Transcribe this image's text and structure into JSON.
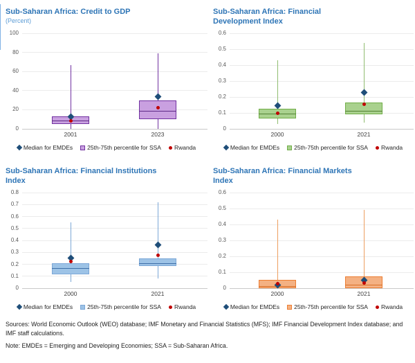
{
  "figure": {
    "legend": {
      "emde": "Median for EMDEs",
      "ssa": "25th-75th percentile for SSA",
      "rwanda": "Rwanda"
    },
    "notes": {
      "sources": "Sources: World Economic Outlook (WEO) database; IMF Monetary and Financial Statistics (MFS); IMF Financial Development Index database; and IMF staff calculations.",
      "note": "Note: EMDEs = Emerging and Developing Economies; SSA = Sub-Saharan Africa."
    },
    "colors": {
      "title": "#2E75B6",
      "subtitle": "#5B9BD5",
      "emde_marker": "#1F4E79",
      "rwanda_marker": "#C00000",
      "gridline": "#EBEBEB",
      "axis_line": "#C9C9C9"
    }
  },
  "chart_data": [
    {
      "type": "box",
      "title_lines": [
        "Sub-Saharan Africa: Credit to GDP"
      ],
      "subtitle": "(Percent)",
      "ylim": [
        0,
        100
      ],
      "yticks": [
        0,
        20,
        40,
        60,
        80,
        100
      ],
      "categories": [
        "2001",
        "2023"
      ],
      "colors": {
        "box_fill": "#C9A0E0",
        "box_border": "#7030A0",
        "median_line": "#5E2A86",
        "whisker": "#7030A0"
      },
      "series": [
        {
          "category": "2001",
          "whisker_low": 0,
          "p25": 5,
          "median": 9,
          "p75": 13,
          "whisker_high": 67,
          "median_emde": 13,
          "rwanda": 8.5
        },
        {
          "category": "2023",
          "whisker_low": 0,
          "p25": 10,
          "median": 19,
          "p75": 29.5,
          "whisker_high": 79,
          "median_emde": 33.5,
          "rwanda": 22
        }
      ]
    },
    {
      "type": "box",
      "title_lines": [
        "Sub-Saharan Africa: Financial",
        "Development Index"
      ],
      "ylim": [
        0,
        0.6
      ],
      "yticks": [
        0,
        0.1,
        0.2,
        0.3,
        0.4,
        0.5,
        0.6
      ],
      "categories": [
        "2000",
        "2021"
      ],
      "colors": {
        "box_fill": "#A9D18E",
        "box_border": "#70AD47",
        "median_line": "#548235",
        "whisker": "#8FBC6F"
      },
      "series": [
        {
          "category": "2000",
          "whisker_low": 0.03,
          "p25": 0.065,
          "median": 0.095,
          "p75": 0.125,
          "whisker_high": 0.43,
          "median_emde": 0.145,
          "rwanda": 0.1
        },
        {
          "category": "2021",
          "whisker_low": 0.04,
          "p25": 0.09,
          "median": 0.115,
          "p75": 0.165,
          "whisker_high": 0.54,
          "median_emde": 0.23,
          "rwanda": 0.155
        }
      ]
    },
    {
      "type": "box",
      "title_lines": [
        "Sub-Saharan Africa: Financial Institutions",
        "Index"
      ],
      "ylim": [
        0,
        0.8
      ],
      "yticks": [
        0,
        0.1,
        0.2,
        0.3,
        0.4,
        0.5,
        0.6,
        0.7,
        0.8
      ],
      "categories": [
        "2000",
        "2021"
      ],
      "colors": {
        "box_fill": "#9DC3E6",
        "box_border": "#7BA7D7",
        "median_line": "#3E6FA8",
        "whisker": "#7BA7D7"
      },
      "series": [
        {
          "category": "2000",
          "whisker_low": 0.05,
          "p25": 0.115,
          "median": 0.17,
          "p75": 0.21,
          "whisker_high": 0.55,
          "median_emde": 0.255,
          "rwanda": 0.225
        },
        {
          "category": "2021",
          "whisker_low": 0.08,
          "p25": 0.185,
          "median": 0.21,
          "p75": 0.25,
          "whisker_high": 0.72,
          "median_emde": 0.36,
          "rwanda": 0.275
        }
      ]
    },
    {
      "type": "box",
      "title_lines": [
        "Sub-Saharan Africa: Financial Markets",
        "Index"
      ],
      "ylim": [
        0,
        0.6
      ],
      "yticks": [
        0,
        0.1,
        0.2,
        0.3,
        0.4,
        0.5,
        0.6
      ],
      "categories": [
        "2000",
        "2021"
      ],
      "colors": {
        "box_fill": "#F4B183",
        "box_border": "#ED7D31",
        "median_line": "#D86E27",
        "whisker": "#ED9E5F"
      },
      "series": [
        {
          "category": "2000",
          "whisker_low": 0,
          "p25": 0,
          "median": 0.012,
          "p75": 0.053,
          "whisker_high": 0.43,
          "median_emde": 0.02,
          "rwanda": 0.03
        },
        {
          "category": "2021",
          "whisker_low": 0,
          "p25": 0,
          "median": 0.02,
          "p75": 0.075,
          "whisker_high": 0.49,
          "median_emde": 0.05,
          "rwanda": 0.032
        }
      ]
    }
  ]
}
